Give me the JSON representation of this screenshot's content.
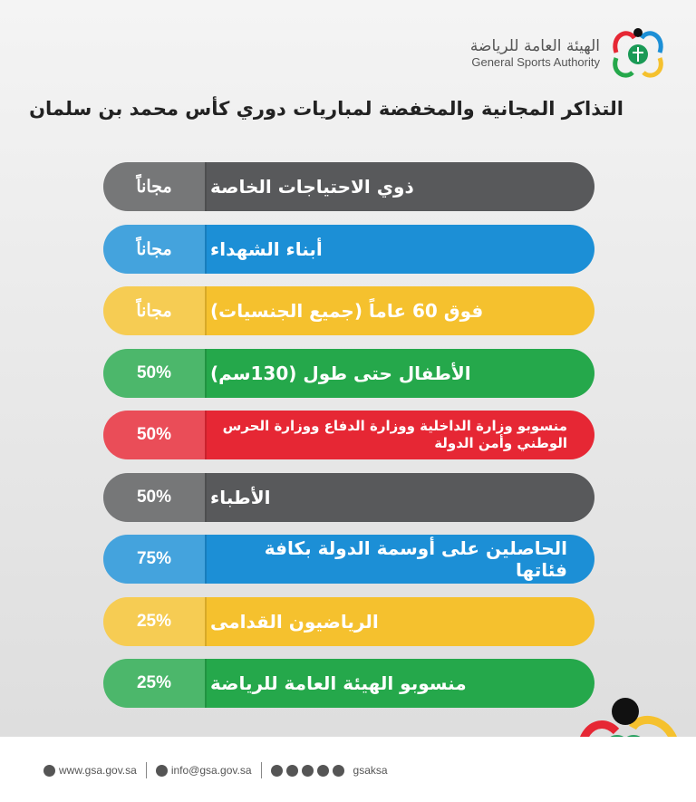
{
  "header": {
    "logo_ar": "الهيئة العامة للرياضة",
    "logo_en": "General Sports Authority",
    "title": "التذاكر المجانية والمخفضة لمباريات دوري كأس محمد بن سلمان"
  },
  "rows": [
    {
      "label": "ذوي الاحتياجات الخاصة",
      "value": "مجاناً",
      "color": "#58595b"
    },
    {
      "label": "أبناء الشهداء",
      "value": "مجاناً",
      "color": "#1c8fd6"
    },
    {
      "label": "فوق 60 عاماً (جميع الجنسيات)",
      "value": "مجاناً",
      "color": "#f5c12e"
    },
    {
      "label": "الأطفال حتى طول (130سم)",
      "value": "50%",
      "color": "#25a84b"
    },
    {
      "label": "منسوبو وزارة الداخلية ووزارة الدفاع ووزارة الحرس الوطني وأمن الدولة",
      "value": "50%",
      "color": "#e62734"
    },
    {
      "label": "الأطباء",
      "value": "50%",
      "color": "#58595b"
    },
    {
      "label": "الحاصلين على أوسمة الدولة بكافة فئاتها",
      "value": "75%",
      "color": "#1c8fd6"
    },
    {
      "label": "الرياضيون القدامى",
      "value": "25%",
      "color": "#f5c12e"
    },
    {
      "label": "منسوبو الهيئة العامة للرياضة",
      "value": "25%",
      "color": "#25a84b"
    }
  ],
  "footer": {
    "website": "www.gsa.gov.sa",
    "email": "info@gsa.gov.sa",
    "handle": "gsaksa"
  }
}
